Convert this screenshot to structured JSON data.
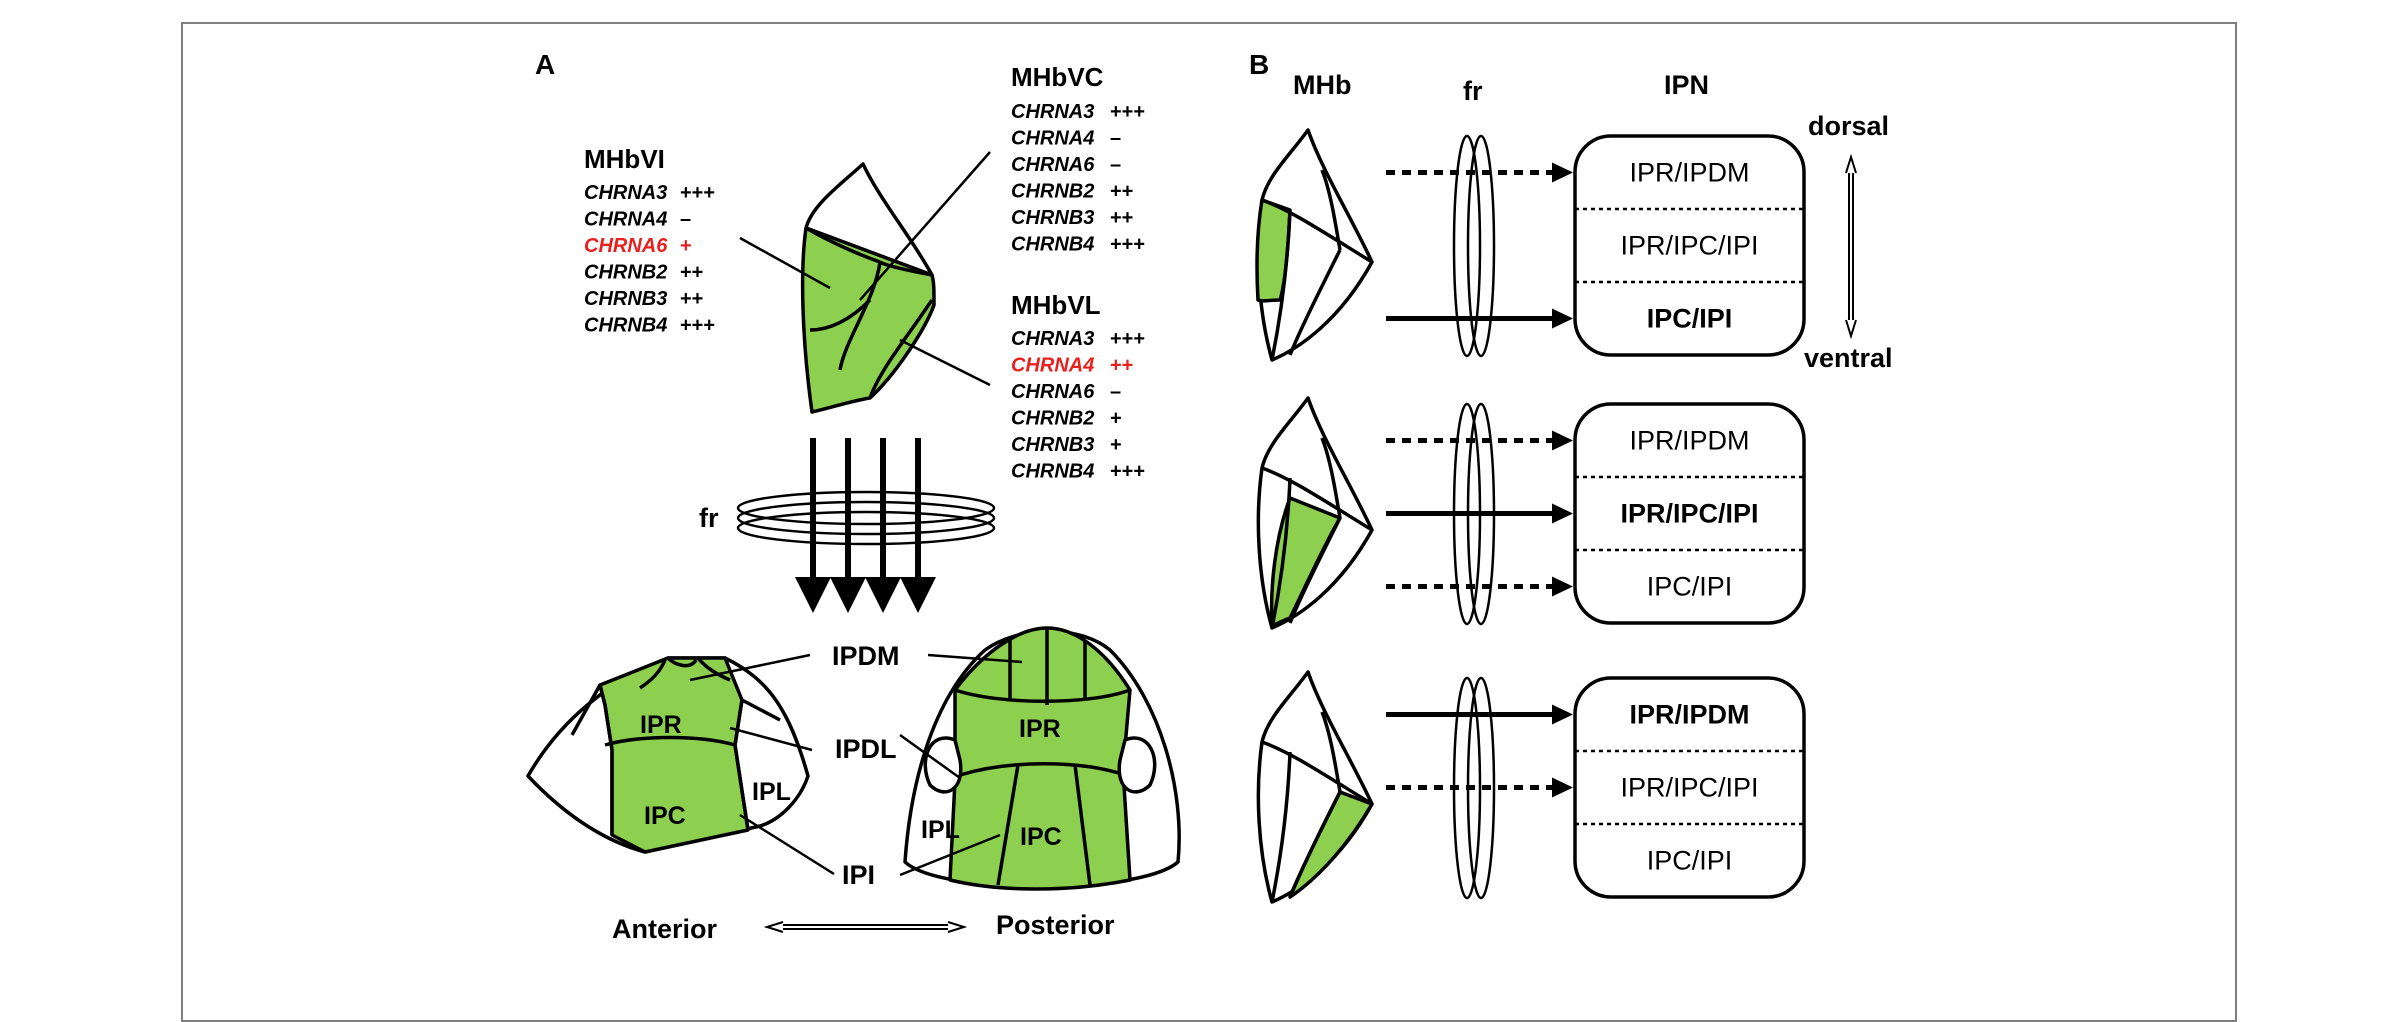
{
  "panel_a": {
    "letter": "A",
    "mhbvi": {
      "title": "MHbVI",
      "rows": [
        {
          "gene": "CHRNA3",
          "level": "+++",
          "highlight": false
        },
        {
          "gene": "CHRNA4",
          "level": "–",
          "highlight": false
        },
        {
          "gene": "CHRNA6",
          "level": "+",
          "highlight": true
        },
        {
          "gene": "CHRNB2",
          "level": "++",
          "highlight": false
        },
        {
          "gene": "CHRNB3",
          "level": "++",
          "highlight": false
        },
        {
          "gene": "CHRNB4",
          "level": "+++",
          "highlight": false
        }
      ]
    },
    "mhbvc": {
      "title": "MHbVC",
      "rows": [
        {
          "gene": "CHRNA3",
          "level": "+++",
          "highlight": false
        },
        {
          "gene": "CHRNA4",
          "level": "–",
          "highlight": false
        },
        {
          "gene": "CHRNA6",
          "level": "–",
          "highlight": false
        },
        {
          "gene": "CHRNB2",
          "level": "++",
          "highlight": false
        },
        {
          "gene": "CHRNB3",
          "level": "++",
          "highlight": false
        },
        {
          "gene": "CHRNB4",
          "level": "+++",
          "highlight": false
        }
      ]
    },
    "mhbvl": {
      "title": "MHbVL",
      "rows": [
        {
          "gene": "CHRNA3",
          "level": "+++",
          "highlight": false
        },
        {
          "gene": "CHRNA4",
          "level": "++",
          "highlight": true
        },
        {
          "gene": "CHRNA6",
          "level": "–",
          "highlight": false
        },
        {
          "gene": "CHRNB2",
          "level": "+",
          "highlight": false
        },
        {
          "gene": "CHRNB3",
          "level": "+",
          "highlight": false
        },
        {
          "gene": "CHRNB4",
          "level": "+++",
          "highlight": false
        }
      ]
    },
    "fr": "fr",
    "ipdm": "IPDM",
    "ipdl": "IPDL",
    "ipi": "IPI",
    "ipr": "IPR",
    "ipc": "IPC",
    "ipl": "IPL",
    "anterior": "Anterior",
    "posterior": "Posterior"
  },
  "panel_b": {
    "letter": "B",
    "mhb": "MHb",
    "fr": "fr",
    "ipn": "IPN",
    "dorsal": "dorsal",
    "ventral": "ventral",
    "rows": [
      {
        "zones": [
          "IPR/IPDM",
          "IPR/IPC/IPI",
          "IPC/IPI"
        ],
        "bold": [
          false,
          false,
          true
        ]
      },
      {
        "zones": [
          "IPR/IPDM",
          "IPR/IPC/IPI",
          "IPC/IPI"
        ],
        "bold": [
          false,
          true,
          false
        ]
      },
      {
        "zones": [
          "IPR/IPDM",
          "IPR/IPC/IPI",
          "IPC/IPI"
        ],
        "bold": [
          true,
          false,
          false
        ]
      }
    ]
  },
  "colors": {
    "green": "#8DCF4F",
    "highlight": "#E8211F",
    "line": "#000000",
    "frame": "#7F7F7F"
  }
}
